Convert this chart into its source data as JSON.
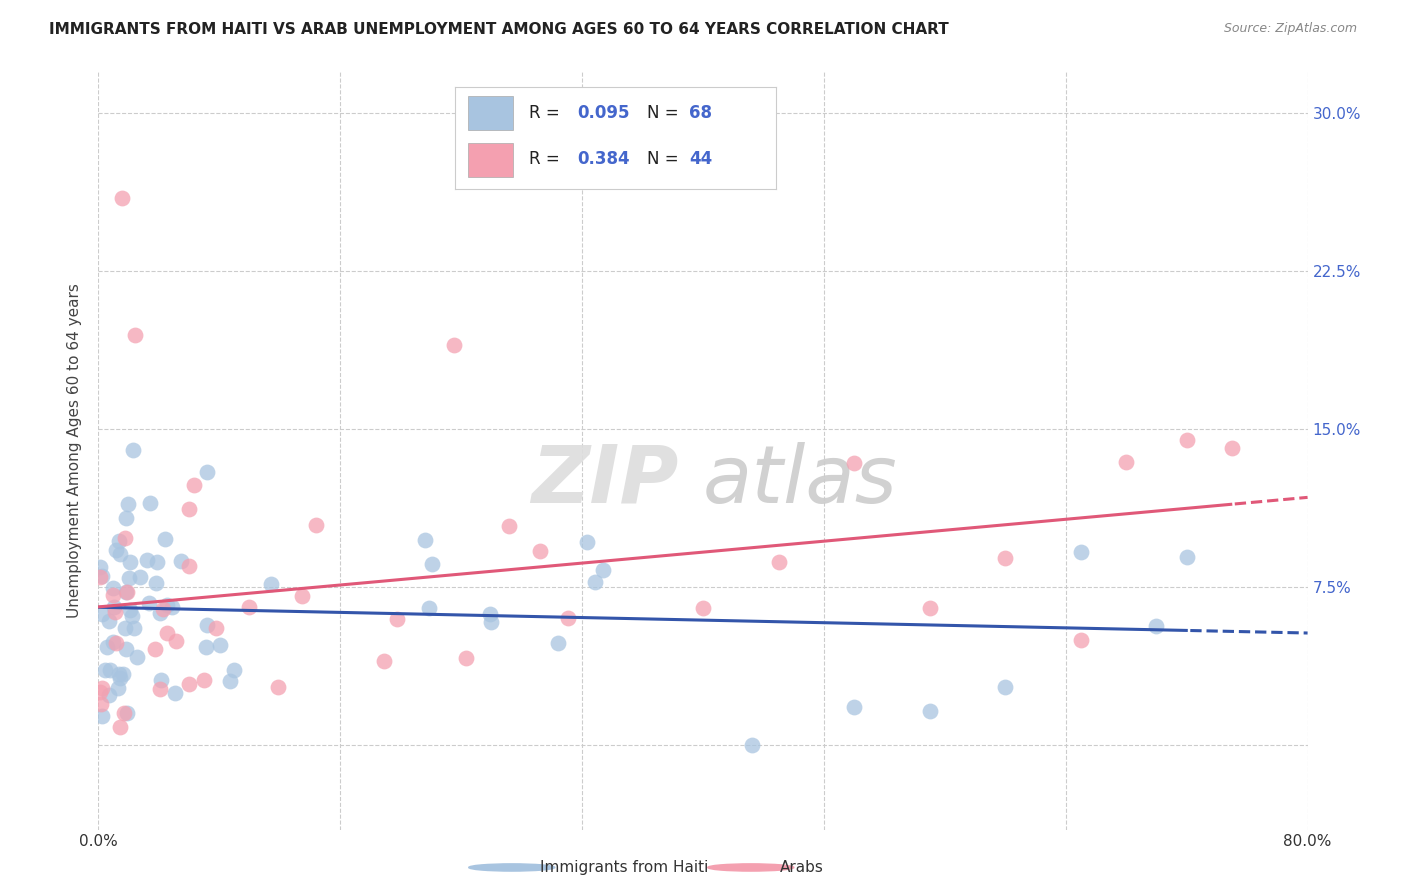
{
  "title": "IMMIGRANTS FROM HAITI VS ARAB UNEMPLOYMENT AMONG AGES 60 TO 64 YEARS CORRELATION CHART",
  "source": "Source: ZipAtlas.com",
  "ylabel": "Unemployment Among Ages 60 to 64 years",
  "xlim": [
    0.0,
    0.8
  ],
  "ylim": [
    -0.04,
    0.32
  ],
  "legend_r1": "0.095",
  "legend_n1": "68",
  "legend_r2": "0.384",
  "legend_n2": "44",
  "haiti_color": "#a8c4e0",
  "arab_color": "#f4a0b0",
  "haiti_line_color": "#3355aa",
  "arab_line_color": "#e05878",
  "background_color": "#ffffff",
  "grid_color": "#cccccc",
  "watermark_zip": "ZIP",
  "watermark_atlas": "atlas",
  "right_tick_color": "#4466cc",
  "bottom_legend_haiti": "Immigrants from Haiti",
  "bottom_legend_arab": "Arabs"
}
